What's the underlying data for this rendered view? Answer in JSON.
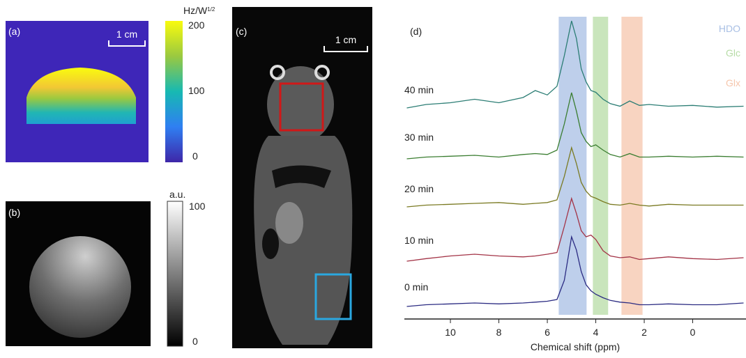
{
  "panels": {
    "a": {
      "label": "(a)",
      "scale_bar": "1 cm",
      "colorbar": {
        "unit": "Hz/W",
        "unit_sup": "1/2",
        "ticks": [
          200,
          100,
          0
        ]
      }
    },
    "b": {
      "label": "(b)",
      "colorbar": {
        "unit": "a.u.",
        "ticks": [
          100,
          0
        ]
      }
    },
    "c": {
      "label": "(c)",
      "scale_bar": "1 cm"
    }
  },
  "chart_data": {
    "type": "line",
    "label": "(d)",
    "xlabel": "Chemical shift (ppm)",
    "xlim": [
      11.9,
      -2.2
    ],
    "xticks": [
      10,
      8,
      6,
      4,
      2,
      0
    ],
    "x": [
      11.8,
      11,
      10,
      9,
      8,
      7,
      6.5,
      6,
      5.6,
      5.3,
      5.0,
      4.8,
      4.6,
      4.4,
      4.2,
      4.0,
      3.7,
      3.4,
      3,
      2.6,
      2.2,
      1.8,
      1,
      0,
      -1,
      -2.1
    ],
    "bands": [
      {
        "name": "HDO",
        "color": "#a8bfe4",
        "range": [
          5.53,
          4.38
        ]
      },
      {
        "name": "Glc",
        "color": "#b7dca6",
        "range": [
          4.12,
          3.49
        ]
      },
      {
        "name": "Glx",
        "color": "#f6c6ac",
        "range": [
          2.94,
          2.07
        ]
      }
    ],
    "series": [
      {
        "name": "40 min",
        "color": "#2b7d74",
        "values": [
          0,
          0.04,
          0.06,
          0.1,
          0.06,
          0.12,
          0.2,
          0.15,
          0.25,
          0.6,
          1.0,
          0.8,
          0.45,
          0.3,
          0.2,
          0.18,
          0.1,
          0.05,
          0.02,
          0.08,
          0.03,
          0.04,
          0.02,
          0.03,
          0.01,
          0.02
        ]
      },
      {
        "name": "30 min",
        "color": "#3a7d30",
        "values": [
          0,
          0.02,
          0.03,
          0.04,
          0.02,
          0.05,
          0.06,
          0.05,
          0.1,
          0.4,
          0.76,
          0.55,
          0.3,
          0.2,
          0.14,
          0.16,
          0.1,
          0.05,
          0.02,
          0.06,
          0.02,
          0.02,
          0.03,
          0.02,
          0.03,
          0.02
        ]
      },
      {
        "name": "20 min",
        "color": "#7a7a22",
        "values": [
          0,
          0.02,
          0.03,
          0.04,
          0.05,
          0.03,
          0.04,
          0.05,
          0.08,
          0.35,
          0.68,
          0.5,
          0.28,
          0.18,
          0.12,
          0.1,
          0.06,
          0.03,
          0.02,
          0.04,
          0.02,
          0.01,
          0.03,
          0.02,
          0.02,
          0.02
        ]
      },
      {
        "name": "10 min",
        "color": "#a33346",
        "values": [
          0,
          0.03,
          0.06,
          0.08,
          0.06,
          0.05,
          0.06,
          0.08,
          0.1,
          0.4,
          0.72,
          0.55,
          0.35,
          0.28,
          0.3,
          0.25,
          0.12,
          0.06,
          0.04,
          0.05,
          0.02,
          0.03,
          0.05,
          0.03,
          0.02,
          0.04
        ]
      },
      {
        "name": "0 min",
        "color": "#2b2b82",
        "values": [
          0,
          0.02,
          0.03,
          0.04,
          0.03,
          0.04,
          0.05,
          0.06,
          0.08,
          0.3,
          0.8,
          0.65,
          0.4,
          0.25,
          0.18,
          0.14,
          0.1,
          0.07,
          0.05,
          0.04,
          0.02,
          0.02,
          0.03,
          0.02,
          0.02,
          0.04
        ]
      }
    ]
  }
}
